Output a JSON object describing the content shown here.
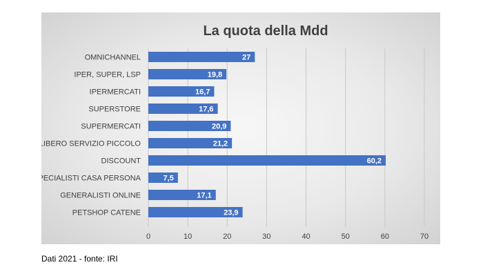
{
  "chart_data": {
    "type": "bar",
    "orientation": "horizontal",
    "title": "La quota della Mdd",
    "categories": [
      "OMNICHANNEL",
      "IPER, SUPER, LSP",
      "IPERMERCATI",
      "SUPERSTORE",
      "SUPERMERCATI",
      "LIBERO SERVIZIO PICCOLO",
      "DISCOUNT",
      "SPECIALISTI CASA PERSONA",
      "GENERALISTI ONLINE",
      "PETSHOP CATENE"
    ],
    "values": [
      27,
      19.8,
      16.7,
      17.6,
      20.9,
      21.2,
      60.2,
      7.5,
      17.1,
      23.9
    ],
    "data_labels": [
      "27",
      "19,8",
      "16,7",
      "17,6",
      "20,9",
      "21,2",
      "60,2",
      "7,5",
      "17,1",
      "23,9"
    ],
    "x_ticks": [
      "0",
      "10",
      "20",
      "30",
      "40",
      "50",
      "60",
      "70"
    ],
    "xlim": [
      0,
      70
    ],
    "grid": true,
    "legend": "none",
    "colors": {
      "bar": "#4472c4",
      "bar_label": "#ffffff",
      "grid": "#c8c8c8",
      "text": "#404040",
      "title": "#404040"
    }
  },
  "footnote": "Dati 2021 - fonte: IRI"
}
